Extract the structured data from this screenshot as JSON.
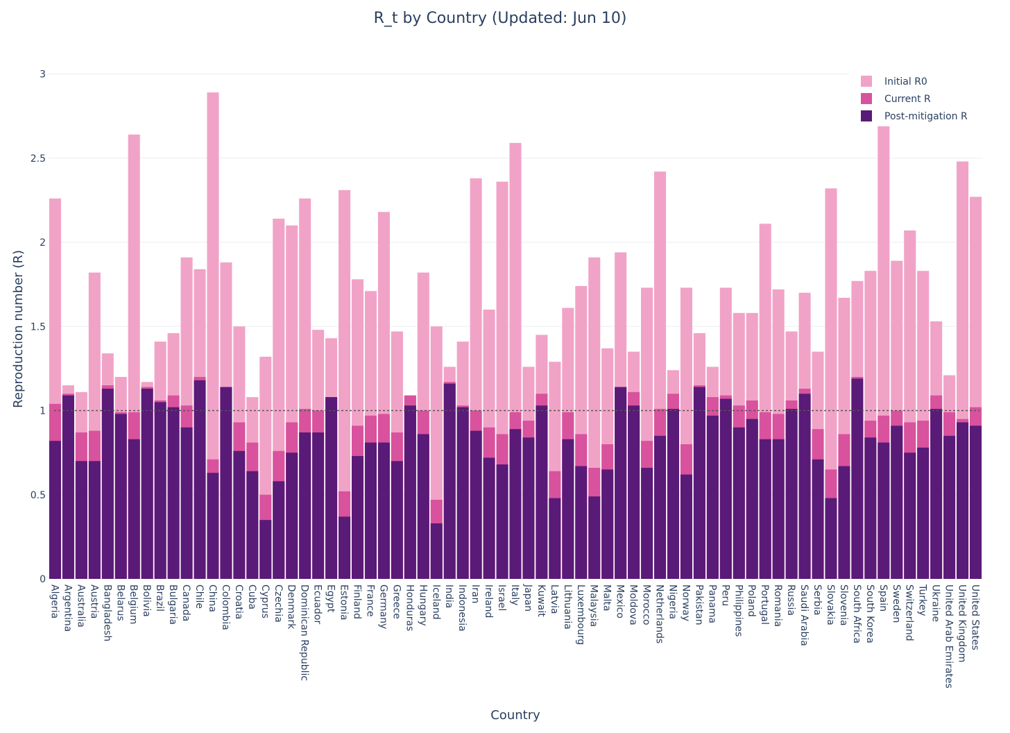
{
  "chart_data": {
    "type": "bar",
    "title": "R_t by Country (Updated: Jun 10)",
    "xlabel": "Country",
    "ylabel": "Reproduction number (R)",
    "ylim": [
      0,
      3.2
    ],
    "yticks": [
      "0",
      "0.5",
      "1",
      "1.5",
      "2",
      "2.5",
      "3"
    ],
    "reference_line": 1,
    "barmode": "overlay",
    "grid": true,
    "legend_position": "top-right",
    "colors": {
      "Initial R0": "#f1a3c7",
      "Current R": "#d9529d",
      "Post-mitigation R": "#5a1a78",
      "reference_line": "#555555"
    },
    "categories": [
      "Algeria",
      "Argentina",
      "Australia",
      "Austria",
      "Bangladesh",
      "Belarus",
      "Belgium",
      "Bolivia",
      "Brazil",
      "Bulgaria",
      "Canada",
      "Chile",
      "China",
      "Colombia",
      "Croatia",
      "Cuba",
      "Cyprus",
      "Czechia",
      "Denmark",
      "Dominican Republic",
      "Ecuador",
      "Egypt",
      "Estonia",
      "Finland",
      "France",
      "Germany",
      "Greece",
      "Honduras",
      "Hungary",
      "Iceland",
      "India",
      "Indonesia",
      "Iran",
      "Ireland",
      "Israel",
      "Italy",
      "Japan",
      "Kuwait",
      "Latvia",
      "Lithuania",
      "Luxembourg",
      "Malaysia",
      "Malta",
      "Mexico",
      "Moldova",
      "Morocco",
      "Netherlands",
      "Nigeria",
      "Norway",
      "Pakistan",
      "Panama",
      "Peru",
      "Philippines",
      "Poland",
      "Portugal",
      "Romania",
      "Russia",
      "Saudi Arabia",
      "Serbia",
      "Slovakia",
      "Slovenia",
      "South Africa",
      "South Korea",
      "Spain",
      "Sweden",
      "Switzerland",
      "Turkey",
      "Ukraine",
      "United Arab Emirates",
      "United Kingdom",
      "United States"
    ],
    "series": [
      {
        "name": "Initial R0",
        "values": [
          2.26,
          1.15,
          1.11,
          1.82,
          1.34,
          1.2,
          2.64,
          1.17,
          1.41,
          1.46,
          1.91,
          1.84,
          2.89,
          1.88,
          1.5,
          1.08,
          1.32,
          2.14,
          2.1,
          2.26,
          1.48,
          1.43,
          2.31,
          1.78,
          1.71,
          2.18,
          1.47,
          1.09,
          1.82,
          1.5,
          1.26,
          1.41,
          2.38,
          1.6,
          2.36,
          2.59,
          1.26,
          1.45,
          1.29,
          1.61,
          1.74,
          1.91,
          1.37,
          1.94,
          1.35,
          1.73,
          2.42,
          1.24,
          1.73,
          1.46,
          1.26,
          1.73,
          1.58,
          1.58,
          2.11,
          1.72,
          1.47,
          1.7,
          1.35,
          2.32,
          1.67,
          1.77,
          1.83,
          2.95,
          1.89,
          2.07,
          1.83,
          1.53,
          1.21,
          2.48,
          2.27
        ]
      },
      {
        "name": "Current R",
        "values": [
          1.04,
          1.1,
          0.87,
          0.88,
          1.15,
          0.99,
          0.99,
          1.14,
          1.06,
          1.09,
          1.03,
          1.2,
          0.71,
          1.14,
          0.93,
          0.81,
          0.5,
          0.76,
          0.93,
          1.01,
          1.0,
          1.08,
          0.52,
          0.91,
          0.97,
          0.98,
          0.87,
          1.09,
          1.0,
          0.47,
          1.17,
          1.03,
          1.0,
          0.9,
          0.86,
          0.99,
          0.94,
          1.1,
          0.64,
          0.99,
          0.86,
          0.66,
          0.8,
          1.14,
          1.11,
          0.82,
          1.01,
          1.1,
          0.8,
          1.15,
          1.08,
          1.09,
          1.03,
          1.06,
          0.99,
          0.98,
          1.06,
          1.13,
          0.89,
          0.65,
          0.86,
          1.2,
          0.94,
          0.97,
          1.0,
          0.93,
          0.94,
          1.09,
          0.99,
          0.95,
          1.02
        ]
      },
      {
        "name": "Post-mitigation R",
        "values": [
          0.82,
          1.09,
          0.7,
          0.7,
          1.13,
          0.98,
          0.83,
          1.13,
          1.05,
          1.02,
          0.9,
          1.18,
          0.63,
          1.14,
          0.76,
          0.64,
          0.35,
          0.58,
          0.75,
          0.87,
          0.87,
          1.08,
          0.37,
          0.73,
          0.81,
          0.81,
          0.7,
          1.03,
          0.86,
          0.33,
          1.16,
          1.02,
          0.88,
          0.72,
          0.68,
          0.89,
          0.84,
          1.03,
          0.48,
          0.83,
          0.67,
          0.49,
          0.65,
          1.14,
          1.03,
          0.66,
          0.85,
          1.01,
          0.62,
          1.14,
          0.97,
          1.07,
          0.9,
          0.95,
          0.83,
          0.83,
          1.01,
          1.1,
          0.71,
          0.48,
          0.67,
          1.19,
          0.84,
          0.81,
          0.91,
          0.75,
          0.78,
          1.01,
          0.85,
          0.93,
          0.91
        ]
      }
    ]
  }
}
